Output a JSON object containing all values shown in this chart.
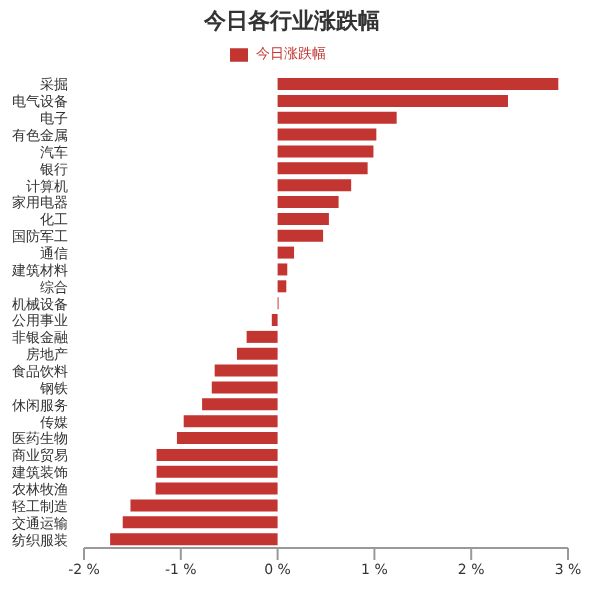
{
  "chart_data": {
    "type": "bar",
    "orientation": "horizontal",
    "title": "今日各行业涨跌幅",
    "categories": [
      "采掘",
      "电气设备",
      "电子",
      "有色金属",
      "汽车",
      "银行",
      "计算机",
      "家用电器",
      "化工",
      "国防军工",
      "通信",
      "建筑材料",
      "综合",
      "机械设备",
      "公用事业",
      "非银金融",
      "房地产",
      "食品饮料",
      "钢铁",
      "休闲服务",
      "传媒",
      "医药生物",
      "商业贸易",
      "建筑装饰",
      "农林牧渔",
      "轻工制造",
      "交通运输",
      "纺织服装"
    ],
    "series": [
      {
        "name": "今日涨跌幅",
        "color": "#c23531",
        "values": [
          2.9,
          2.38,
          1.23,
          1.02,
          0.99,
          0.93,
          0.76,
          0.63,
          0.53,
          0.47,
          0.17,
          0.1,
          0.09,
          0.01,
          -0.06,
          -0.32,
          -0.42,
          -0.65,
          -0.68,
          -0.78,
          -0.97,
          -1.04,
          -1.25,
          -1.25,
          -1.26,
          -1.52,
          -1.6,
          -1.73
        ]
      }
    ],
    "xlim": [
      -2,
      3
    ],
    "xticks": [
      {
        "value": -2,
        "label": "-2 %"
      },
      {
        "value": -1,
        "label": "-1 %"
      },
      {
        "value": 0,
        "label": "0 %"
      },
      {
        "value": 1,
        "label": "1 %"
      },
      {
        "value": 2,
        "label": "2 %"
      },
      {
        "value": 3,
        "label": "3 %"
      }
    ],
    "legend": "top",
    "grid": false
  }
}
